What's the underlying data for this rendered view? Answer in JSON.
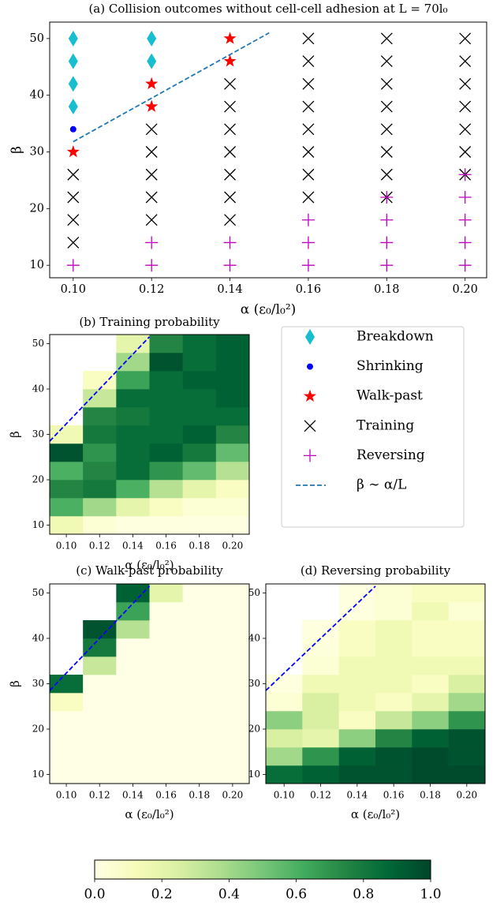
{
  "chart_data": [
    {
      "type": "scatter",
      "title": "(a) Collision outcomes without cell-cell adhesion at L = 70l₀",
      "xlabel": "α (ε₀/l₀²)",
      "ylabel": "β",
      "xlim": [
        0.094,
        0.2055
      ],
      "ylim": [
        7.8,
        52.9
      ],
      "xticks": [
        {
          "value": 0.1,
          "label": "0.10"
        },
        {
          "value": 0.12,
          "label": "0.12"
        },
        {
          "value": 0.14,
          "label": "0.14"
        },
        {
          "value": 0.16,
          "label": "0.16"
        },
        {
          "value": 0.18,
          "label": "0.18"
        },
        {
          "value": 0.2,
          "label": "0.20"
        }
      ],
      "yticks": [
        10,
        20,
        30,
        40,
        50
      ],
      "series": [
        {
          "name": "Breakdown",
          "color": "#17becf",
          "marker": "d",
          "x": [
            0.1,
            0.1,
            0.1,
            0.1,
            0.12,
            0.12
          ],
          "y": [
            38,
            42,
            46,
            50,
            46,
            50
          ]
        },
        {
          "name": "Shrinking",
          "color": "#0000ff",
          "marker": "o",
          "x": [
            0.1
          ],
          "y": [
            34
          ]
        },
        {
          "name": "Walk-past",
          "color": "#ff0000",
          "marker": "*",
          "x": [
            0.1,
            0.12,
            0.12,
            0.14,
            0.14
          ],
          "y": [
            30,
            38,
            42,
            46,
            50
          ]
        },
        {
          "name": "Training",
          "color": "#000000",
          "marker": "x",
          "x": [
            0.1,
            0.1,
            0.1,
            0.1,
            0.12,
            0.12,
            0.12,
            0.12,
            0.12,
            0.14,
            0.14,
            0.14,
            0.14,
            0.14,
            0.14,
            0.14,
            0.16,
            0.16,
            0.16,
            0.16,
            0.16,
            0.16,
            0.16,
            0.16,
            0.18,
            0.18,
            0.18,
            0.18,
            0.18,
            0.18,
            0.18,
            0.18,
            0.2,
            0.2,
            0.2,
            0.2,
            0.2,
            0.2,
            0.2
          ],
          "y": [
            14,
            18,
            22,
            26,
            18,
            22,
            26,
            30,
            34,
            18,
            22,
            26,
            30,
            34,
            38,
            42,
            22,
            26,
            30,
            34,
            38,
            42,
            46,
            50,
            22,
            26,
            30,
            34,
            38,
            42,
            46,
            50,
            26,
            30,
            34,
            38,
            42,
            46,
            50
          ]
        },
        {
          "name": "Reversing",
          "color": "#bf00bf",
          "marker": "+",
          "x": [
            0.1,
            0.12,
            0.12,
            0.14,
            0.14,
            0.16,
            0.16,
            0.16,
            0.18,
            0.18,
            0.18,
            0.18,
            0.2,
            0.2,
            0.2,
            0.2,
            0.2
          ],
          "y": [
            10,
            10,
            14,
            10,
            14,
            10,
            14,
            18,
            10,
            14,
            18,
            22,
            10,
            14,
            18,
            22,
            26
          ]
        },
        {
          "name": "β ∼ α/L",
          "color": "#1f77b4",
          "marker": "line",
          "x": [
            0.1,
            0.15
          ],
          "y": [
            31.8,
            51.0
          ]
        }
      ]
    },
    {
      "type": "heatmap",
      "title": "(b) Training probability",
      "xlabel": "α (ε₀/l₀²)",
      "ylabel": "β",
      "xlim": [
        0.09,
        0.21
      ],
      "ylim": [
        8,
        52
      ],
      "xticks": [
        {
          "value": 0.1,
          "label": "0.10"
        },
        {
          "value": 0.12,
          "label": "0.12"
        },
        {
          "value": 0.14,
          "label": "0.14"
        },
        {
          "value": 0.16,
          "label": "0.16"
        },
        {
          "value": 0.18,
          "label": "0.18"
        },
        {
          "value": 0.2,
          "label": "0.20"
        }
      ],
      "yticks": [
        10,
        20,
        30,
        40,
        50
      ],
      "x": [
        0.1,
        0.12,
        0.14,
        0.16,
        0.18,
        0.2
      ],
      "y": [
        10,
        14,
        18,
        22,
        26,
        30,
        34,
        38,
        42,
        46,
        50
      ],
      "z": [
        [
          0.15,
          0.05,
          0.02,
          0.02,
          0.01,
          0.01
        ],
        [
          0.6,
          0.4,
          0.2,
          0.1,
          0.05,
          0.05
        ],
        [
          0.75,
          0.8,
          0.6,
          0.35,
          0.2,
          0.1
        ],
        [
          0.6,
          0.75,
          0.85,
          0.7,
          0.55,
          0.35
        ],
        [
          0.95,
          0.7,
          0.85,
          0.9,
          0.8,
          0.55
        ],
        [
          0.15,
          0.8,
          0.85,
          0.85,
          0.9,
          0.75
        ],
        [
          null,
          0.75,
          0.8,
          0.85,
          0.85,
          0.85
        ],
        [
          null,
          0.3,
          0.85,
          0.85,
          0.85,
          0.9
        ],
        [
          null,
          0.1,
          0.65,
          0.85,
          0.9,
          0.9
        ],
        [
          null,
          null,
          0.4,
          0.95,
          0.85,
          0.9
        ],
        [
          null,
          null,
          0.2,
          0.75,
          0.85,
          0.9
        ]
      ],
      "line": {
        "color": "#0000ff",
        "x": [
          0.09,
          0.15
        ],
        "y": [
          28.5,
          51.5
        ]
      }
    },
    {
      "type": "heatmap",
      "title": "(c) Walk-past probability",
      "xlabel": "α (ε₀/l₀²)",
      "ylabel": "β",
      "xlim": [
        0.09,
        0.21
      ],
      "ylim": [
        8,
        52
      ],
      "xticks": [
        {
          "value": 0.1,
          "label": "0.10"
        },
        {
          "value": 0.12,
          "label": "0.12"
        },
        {
          "value": 0.14,
          "label": "0.14"
        },
        {
          "value": 0.16,
          "label": "0.16"
        },
        {
          "value": 0.18,
          "label": "0.18"
        },
        {
          "value": 0.2,
          "label": "0.20"
        }
      ],
      "yticks": [
        10,
        20,
        30,
        40,
        50
      ],
      "x": [
        0.1,
        0.12,
        0.14,
        0.16,
        0.18,
        0.2
      ],
      "y": [
        10,
        14,
        18,
        22,
        26,
        30,
        34,
        38,
        42,
        46,
        50
      ],
      "z": [
        [
          0,
          0,
          0,
          0,
          0,
          0
        ],
        [
          0,
          0,
          0,
          0,
          0,
          0
        ],
        [
          0,
          0,
          0,
          0,
          0,
          0
        ],
        [
          0,
          0,
          0,
          0,
          0,
          0
        ],
        [
          0.1,
          0,
          0,
          0,
          0,
          0
        ],
        [
          0.85,
          0,
          0,
          0,
          0,
          0
        ],
        [
          null,
          0.3,
          0,
          0,
          0,
          0
        ],
        [
          null,
          0.8,
          0,
          0,
          0,
          0
        ],
        [
          null,
          0.95,
          0.35,
          0,
          0,
          0
        ],
        [
          null,
          null,
          0.65,
          0,
          0,
          0
        ],
        [
          null,
          null,
          0.9,
          0.2,
          0,
          0
        ]
      ],
      "line": {
        "color": "#0000ff",
        "x": [
          0.09,
          0.15
        ],
        "y": [
          28.5,
          51.5
        ]
      }
    },
    {
      "type": "heatmap",
      "title": "(d) Reversing probability",
      "xlabel": "α (ε₀/l₀²)",
      "xlim": [
        0.09,
        0.21
      ],
      "ylim": [
        8,
        52
      ],
      "xticks": [
        {
          "value": 0.1,
          "label": "0.10"
        },
        {
          "value": 0.12,
          "label": "0.12"
        },
        {
          "value": 0.14,
          "label": "0.14"
        },
        {
          "value": 0.16,
          "label": "0.16"
        },
        {
          "value": 0.18,
          "label": "0.18"
        },
        {
          "value": 0.2,
          "label": "0.20"
        }
      ],
      "yticks": [
        10,
        20,
        30,
        40,
        50
      ],
      "x": [
        0.1,
        0.12,
        0.14,
        0.16,
        0.18,
        0.2
      ],
      "y": [
        10,
        14,
        18,
        22,
        26,
        30,
        34,
        38,
        42,
        46,
        50
      ],
      "z": [
        [
          0.85,
          0.9,
          0.95,
          0.95,
          0.98,
          0.98
        ],
        [
          0.4,
          0.7,
          0.9,
          0.95,
          0.98,
          0.95
        ],
        [
          0.25,
          0.2,
          0.45,
          0.75,
          0.9,
          0.95
        ],
        [
          0.45,
          0.25,
          0.1,
          0.3,
          0.45,
          0.7
        ],
        [
          0.05,
          0.25,
          0.15,
          0.1,
          0.2,
          0.4
        ],
        [
          0.02,
          0.15,
          0.15,
          0.15,
          0.1,
          0.25
        ],
        [
          null,
          0.05,
          0.15,
          0.15,
          0.15,
          0.15
        ],
        [
          null,
          0.03,
          0.1,
          0.15,
          0.1,
          0.1
        ],
        [
          null,
          0.02,
          0.1,
          0.15,
          0.1,
          0.1
        ],
        [
          null,
          null,
          0.02,
          0.05,
          0.15,
          0.05
        ],
        [
          null,
          null,
          0.02,
          0.05,
          0.1,
          0.1
        ]
      ],
      "line": {
        "color": "#0000ff",
        "x": [
          0.09,
          0.15
        ],
        "y": [
          28.5,
          51.5
        ]
      }
    },
    {
      "type": "colorbar",
      "lim": [
        0,
        1
      ],
      "colors": [
        "#ffffe5",
        "#f7fcb9",
        "#d9f0a3",
        "#addd8e",
        "#78c679",
        "#41ab5d",
        "#238443",
        "#006837",
        "#004529"
      ],
      "ticks": [
        {
          "value": 0,
          "label": "0.0"
        },
        0.2,
        0.4,
        0.6,
        0.8,
        {
          "value": 1,
          "label": "1.0"
        }
      ]
    }
  ]
}
